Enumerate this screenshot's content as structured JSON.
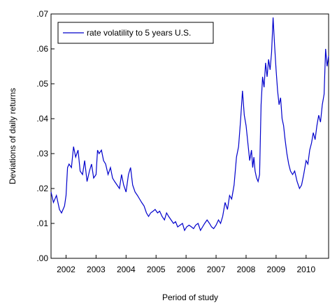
{
  "chart_data": {
    "type": "line",
    "xlabel": "Period of study",
    "ylabel": "Deviations of daily returns",
    "x_range": [
      2001.5,
      2010.75
    ],
    "ylim": [
      0.0,
      0.07
    ],
    "y_ticks": [
      ".00",
      ".01",
      ".02",
      ".03",
      ".04",
      ".05",
      ".06",
      ".07"
    ],
    "x_tick_labels": [
      "2002",
      "2003",
      "2004",
      "2005",
      "2006",
      "2007",
      "2008",
      "2009",
      "2010"
    ],
    "grid": false,
    "legend_position": "top-left",
    "line_color": "#0000cc",
    "series": [
      {
        "name": "rate volatility to 5 years U.S.",
        "x": [
          2001.5,
          2001.58,
          2001.68,
          2001.78,
          2001.85,
          2001.95,
          2002.0,
          2002.05,
          2002.1,
          2002.18,
          2002.25,
          2002.32,
          2002.4,
          2002.47,
          2002.55,
          2002.62,
          2002.7,
          2002.78,
          2002.85,
          2002.92,
          2003.0,
          2003.05,
          2003.1,
          2003.18,
          2003.25,
          2003.32,
          2003.4,
          2003.48,
          2003.55,
          2003.62,
          2003.7,
          2003.78,
          2003.85,
          2003.92,
          2004.0,
          2004.08,
          2004.15,
          2004.22,
          2004.3,
          2004.38,
          2004.45,
          2004.52,
          2004.6,
          2004.68,
          2004.75,
          2004.82,
          2004.9,
          2004.97,
          2005.05,
          2005.12,
          2005.2,
          2005.28,
          2005.35,
          2005.42,
          2005.5,
          2005.58,
          2005.65,
          2005.72,
          2005.8,
          2005.88,
          2005.95,
          2006.02,
          2006.1,
          2006.18,
          2006.25,
          2006.32,
          2006.4,
          2006.48,
          2006.55,
          2006.62,
          2006.7,
          2006.78,
          2006.85,
          2006.92,
          2007.0,
          2007.08,
          2007.15,
          2007.22,
          2007.3,
          2007.38,
          2007.45,
          2007.52,
          2007.6,
          2007.68,
          2007.75,
          2007.82,
          2007.88,
          2007.94,
          2008.0,
          2008.06,
          2008.12,
          2008.18,
          2008.22,
          2008.26,
          2008.3,
          2008.35,
          2008.4,
          2008.45,
          2008.5,
          2008.55,
          2008.6,
          2008.65,
          2008.7,
          2008.75,
          2008.8,
          2008.85,
          2008.9,
          2008.95,
          2009.0,
          2009.05,
          2009.1,
          2009.15,
          2009.2,
          2009.25,
          2009.3,
          2009.36,
          2009.42,
          2009.48,
          2009.55,
          2009.62,
          2009.7,
          2009.78,
          2009.85,
          2009.92,
          2010.0,
          2010.06,
          2010.12,
          2010.18,
          2010.24,
          2010.3,
          2010.36,
          2010.42,
          2010.48,
          2010.54,
          2010.6,
          2010.65,
          2010.7,
          2010.75
        ],
        "values": [
          0.019,
          0.016,
          0.018,
          0.014,
          0.013,
          0.015,
          0.018,
          0.026,
          0.027,
          0.026,
          0.032,
          0.029,
          0.031,
          0.025,
          0.024,
          0.028,
          0.022,
          0.025,
          0.027,
          0.023,
          0.024,
          0.031,
          0.03,
          0.031,
          0.028,
          0.027,
          0.024,
          0.026,
          0.023,
          0.022,
          0.021,
          0.02,
          0.024,
          0.021,
          0.019,
          0.024,
          0.026,
          0.021,
          0.019,
          0.018,
          0.017,
          0.016,
          0.015,
          0.013,
          0.012,
          0.013,
          0.0135,
          0.014,
          0.013,
          0.0135,
          0.012,
          0.011,
          0.013,
          0.012,
          0.011,
          0.01,
          0.0105,
          0.009,
          0.0095,
          0.01,
          0.008,
          0.009,
          0.0095,
          0.009,
          0.0085,
          0.0095,
          0.01,
          0.008,
          0.009,
          0.01,
          0.011,
          0.01,
          0.009,
          0.0085,
          0.0095,
          0.011,
          0.01,
          0.012,
          0.016,
          0.014,
          0.018,
          0.017,
          0.021,
          0.029,
          0.032,
          0.04,
          0.048,
          0.041,
          0.038,
          0.033,
          0.028,
          0.031,
          0.026,
          0.029,
          0.025,
          0.023,
          0.022,
          0.024,
          0.044,
          0.052,
          0.049,
          0.056,
          0.052,
          0.057,
          0.054,
          0.059,
          0.069,
          0.061,
          0.054,
          0.048,
          0.044,
          0.046,
          0.04,
          0.038,
          0.034,
          0.03,
          0.027,
          0.025,
          0.024,
          0.025,
          0.022,
          0.02,
          0.021,
          0.024,
          0.028,
          0.027,
          0.031,
          0.033,
          0.036,
          0.034,
          0.038,
          0.041,
          0.039,
          0.044,
          0.047,
          0.06,
          0.055,
          0.058
        ]
      }
    ]
  }
}
